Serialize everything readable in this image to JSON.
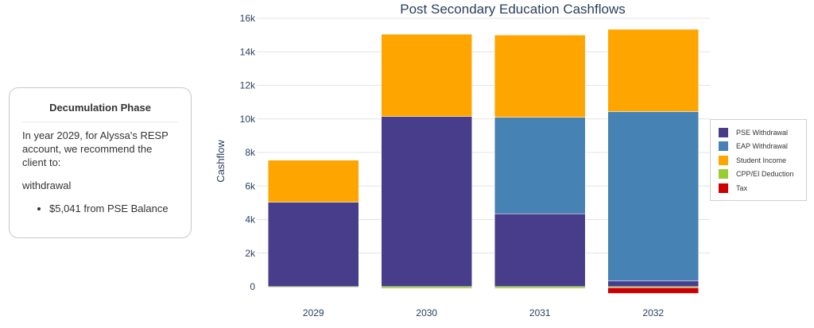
{
  "card": {
    "title": "Decumulation Phase",
    "intro": "In year 2029, for Alyssa's RESP account, we recommend the client to:",
    "action": "withdrawal",
    "bullets": [
      "$5,041 from PSE Balance"
    ]
  },
  "chart_data": {
    "type": "bar",
    "stacked": true,
    "title": "Post Secondary Education Cashflows",
    "xlabel": "",
    "ylabel": "Cashflow",
    "ylim": [
      0,
      16000
    ],
    "yticks": [
      0,
      2000,
      4000,
      6000,
      8000,
      10000,
      12000,
      14000,
      16000
    ],
    "ytick_labels": [
      "0",
      "2k",
      "4k",
      "6k",
      "8k",
      "10k",
      "12k",
      "14k",
      "16k"
    ],
    "grid": true,
    "legend_position": "right",
    "categories": [
      "2029",
      "2030",
      "2031",
      "2032"
    ],
    "series": [
      {
        "name": "PSE Withdrawal",
        "color": "#483d8b",
        "values": [
          5041,
          10150,
          4350,
          340
        ]
      },
      {
        "name": "EAP Withdrawal",
        "color": "#4682b4",
        "values": [
          0,
          0,
          5750,
          10100
        ]
      },
      {
        "name": "Student Income",
        "color": "#ffa500",
        "values": [
          2500,
          4900,
          4900,
          4900
        ]
      },
      {
        "name": "CPP/EI Deduction",
        "color": "#9acd32",
        "values": [
          -30,
          -100,
          -100,
          -60
        ]
      },
      {
        "name": "Tax",
        "color": "#cc0000",
        "values": [
          0,
          0,
          0,
          -340
        ]
      }
    ]
  }
}
